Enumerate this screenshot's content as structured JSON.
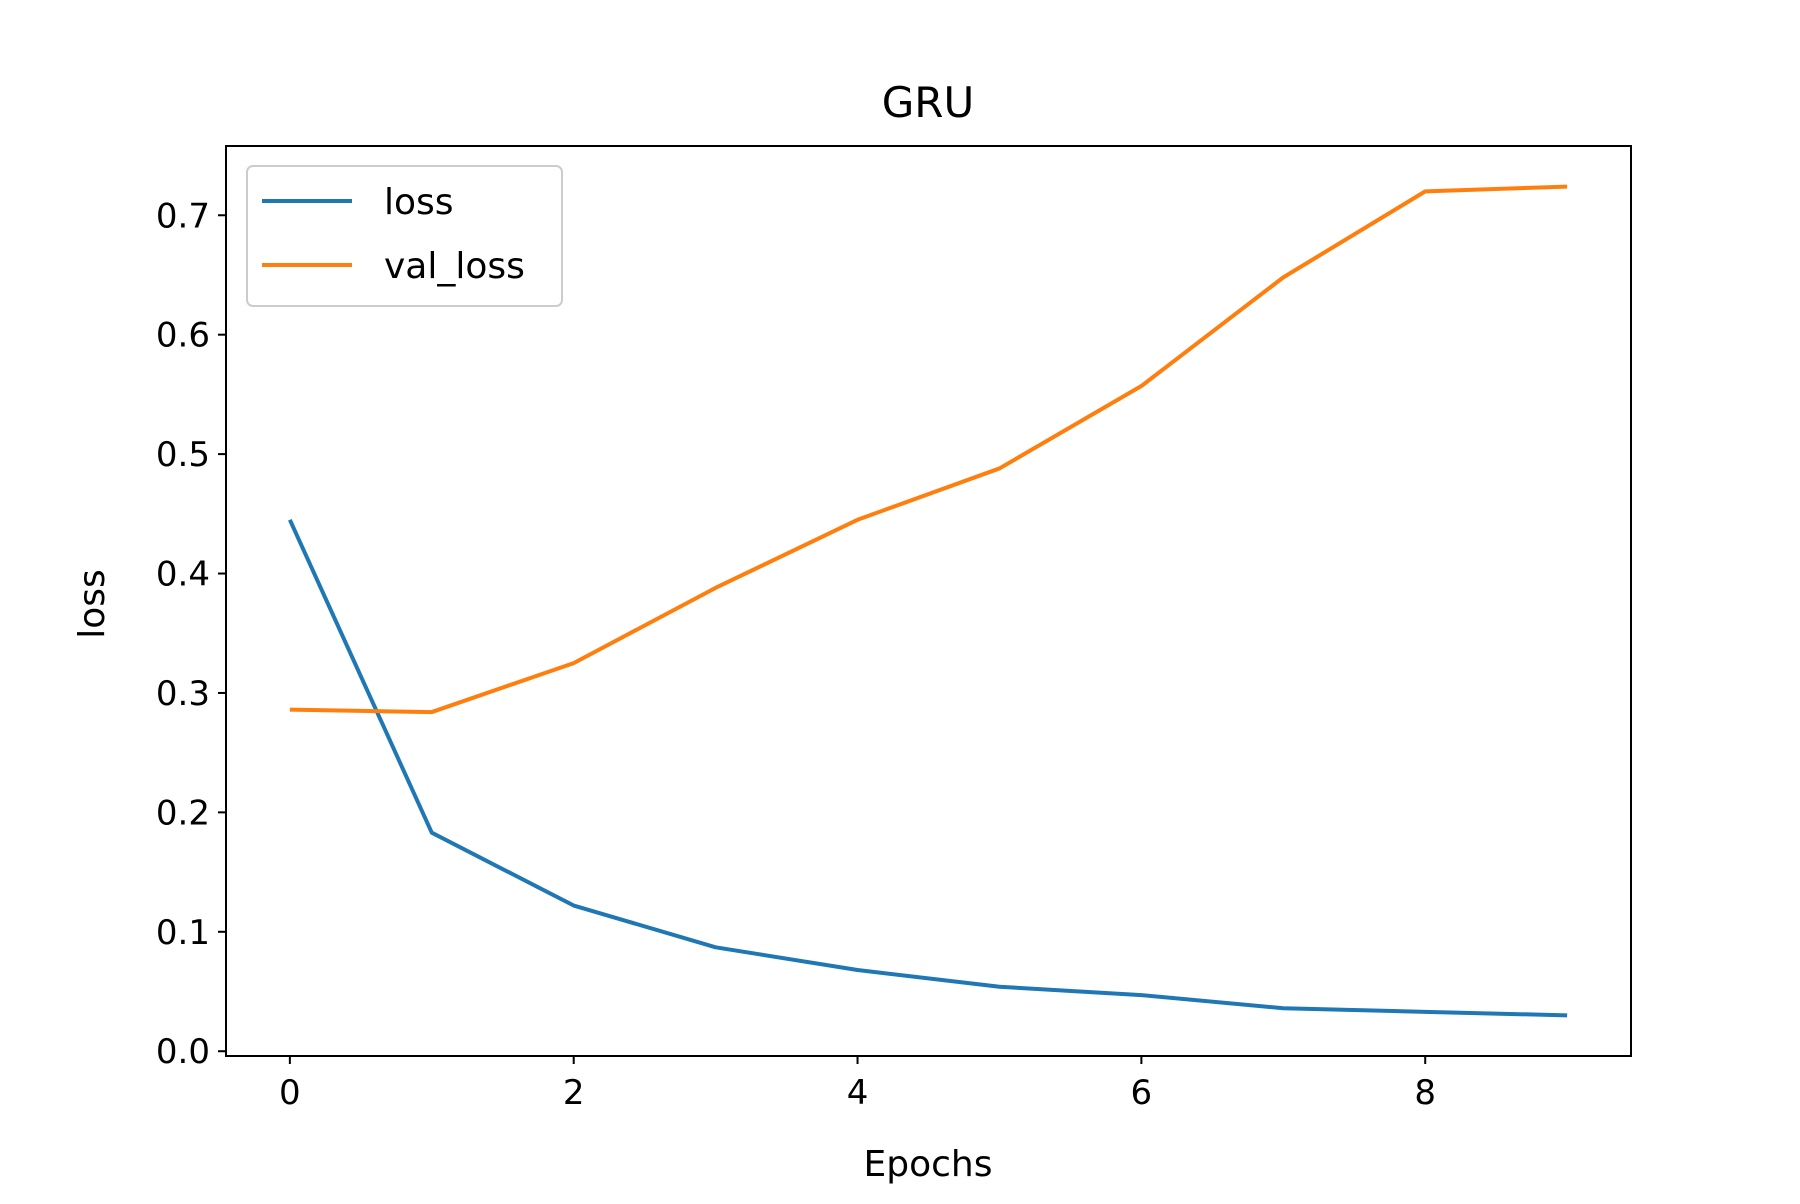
{
  "chart_data": {
    "type": "line",
    "title": "GRU",
    "xlabel": "Epochs",
    "ylabel": "loss",
    "x": [
      0,
      1,
      2,
      3,
      4,
      5,
      6,
      7,
      8,
      9
    ],
    "series": [
      {
        "name": "loss",
        "color": "#1f77b4",
        "values": [
          0.445,
          0.183,
          0.122,
          0.087,
          0.068,
          0.054,
          0.047,
          0.036,
          0.033,
          0.03
        ]
      },
      {
        "name": "val_loss",
        "color": "#ff7f0e",
        "values": [
          0.286,
          0.284,
          0.325,
          0.388,
          0.445,
          0.488,
          0.557,
          0.648,
          0.72,
          0.724
        ]
      }
    ],
    "xlim": [
      -0.45,
      9.45
    ],
    "ylim": [
      -0.004,
      0.758
    ],
    "x_ticks": [
      "0",
      "2",
      "4",
      "6",
      "8"
    ],
    "y_ticks": [
      "0.0",
      "0.1",
      "0.2",
      "0.3",
      "0.4",
      "0.5",
      "0.6",
      "0.7"
    ],
    "legend_position": "top-left",
    "grid": false
  }
}
